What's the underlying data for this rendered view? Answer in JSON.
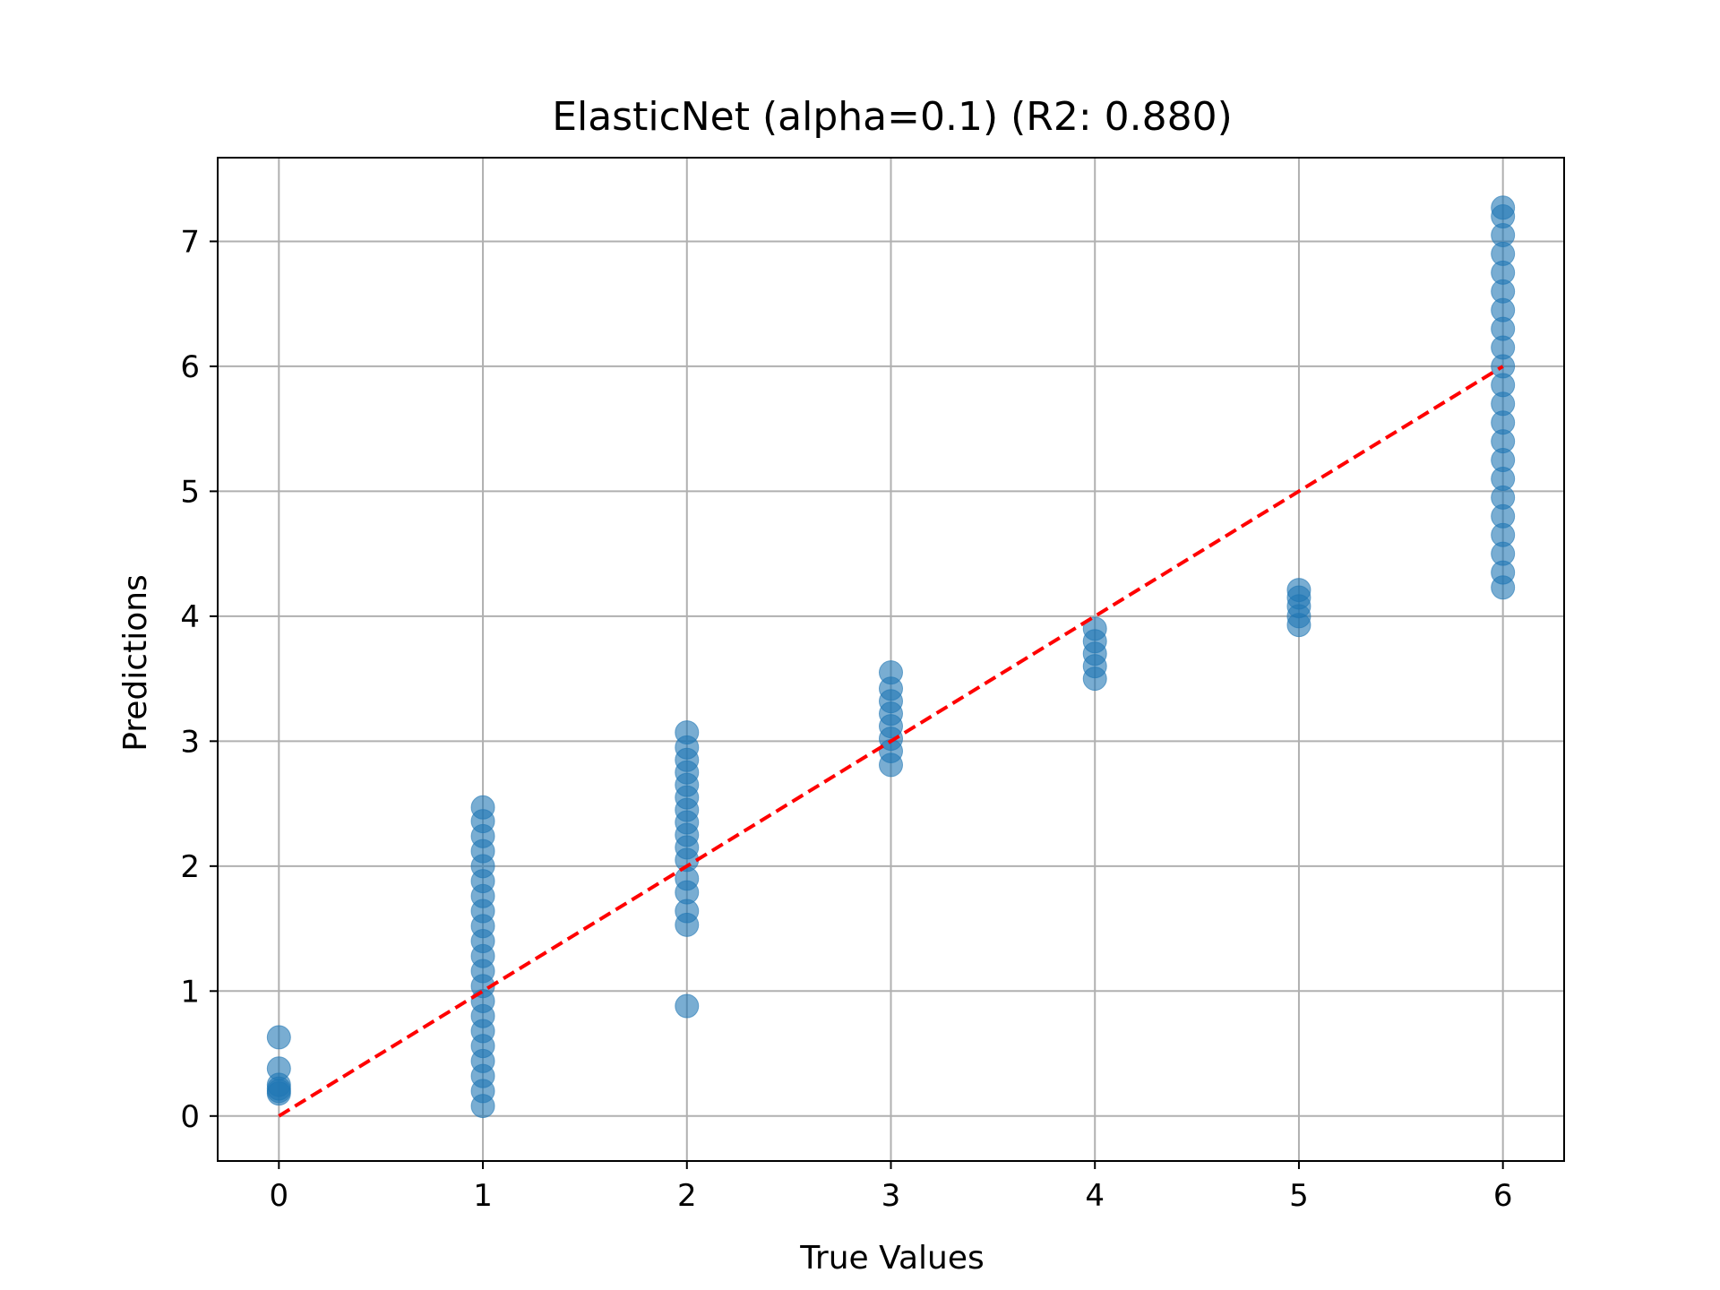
{
  "chart_data": {
    "type": "scatter",
    "title": "ElasticNet (alpha=0.1) (R2: 0.880)",
    "xlabel": "True Values",
    "ylabel": "Predictions",
    "xlim": [
      -0.3,
      6.3
    ],
    "ylim": [
      -0.36,
      7.67
    ],
    "xticks": [
      0,
      1,
      2,
      3,
      4,
      5,
      6
    ],
    "yticks": [
      0,
      1,
      2,
      3,
      4,
      5,
      6,
      7
    ],
    "grid": true,
    "colors": {
      "points": "#1f77b4",
      "reference_line": "#ff0000",
      "grid": "#b0b0b0"
    },
    "series": [
      {
        "x": 0,
        "y": [
          0.18,
          0.2,
          0.22,
          0.25,
          0.38,
          0.63
        ]
      },
      {
        "x": 1,
        "y": [
          0.08,
          0.2,
          0.32,
          0.44,
          0.56,
          0.68,
          0.8,
          0.92,
          1.04,
          1.16,
          1.28,
          1.4,
          1.52,
          1.64,
          1.76,
          1.88,
          2.0,
          2.12,
          2.24,
          2.36,
          2.47
        ]
      },
      {
        "x": 2,
        "y": [
          0.88,
          1.53,
          1.64,
          1.79,
          1.9,
          2.05,
          2.15,
          2.25,
          2.35,
          2.45,
          2.55,
          2.65,
          2.75,
          2.85,
          2.95,
          3.07
        ]
      },
      {
        "x": 3,
        "y": [
          2.81,
          2.92,
          3.02,
          3.12,
          3.22,
          3.32,
          3.42,
          3.55
        ]
      },
      {
        "x": 4,
        "y": [
          3.5,
          3.6,
          3.7,
          3.8,
          3.9
        ]
      },
      {
        "x": 5,
        "y": [
          3.93,
          4.0,
          4.08,
          4.15,
          4.21
        ]
      },
      {
        "x": 6,
        "y": [
          4.23,
          4.35,
          4.5,
          4.65,
          4.8,
          4.95,
          5.1,
          5.25,
          5.4,
          5.55,
          5.7,
          5.85,
          6.0,
          6.15,
          6.3,
          6.45,
          6.6,
          6.75,
          6.9,
          7.05,
          7.2,
          7.27
        ]
      }
    ],
    "reference_line": {
      "x": [
        0,
        6
      ],
      "y": [
        0,
        6
      ],
      "style": "dashed"
    }
  }
}
